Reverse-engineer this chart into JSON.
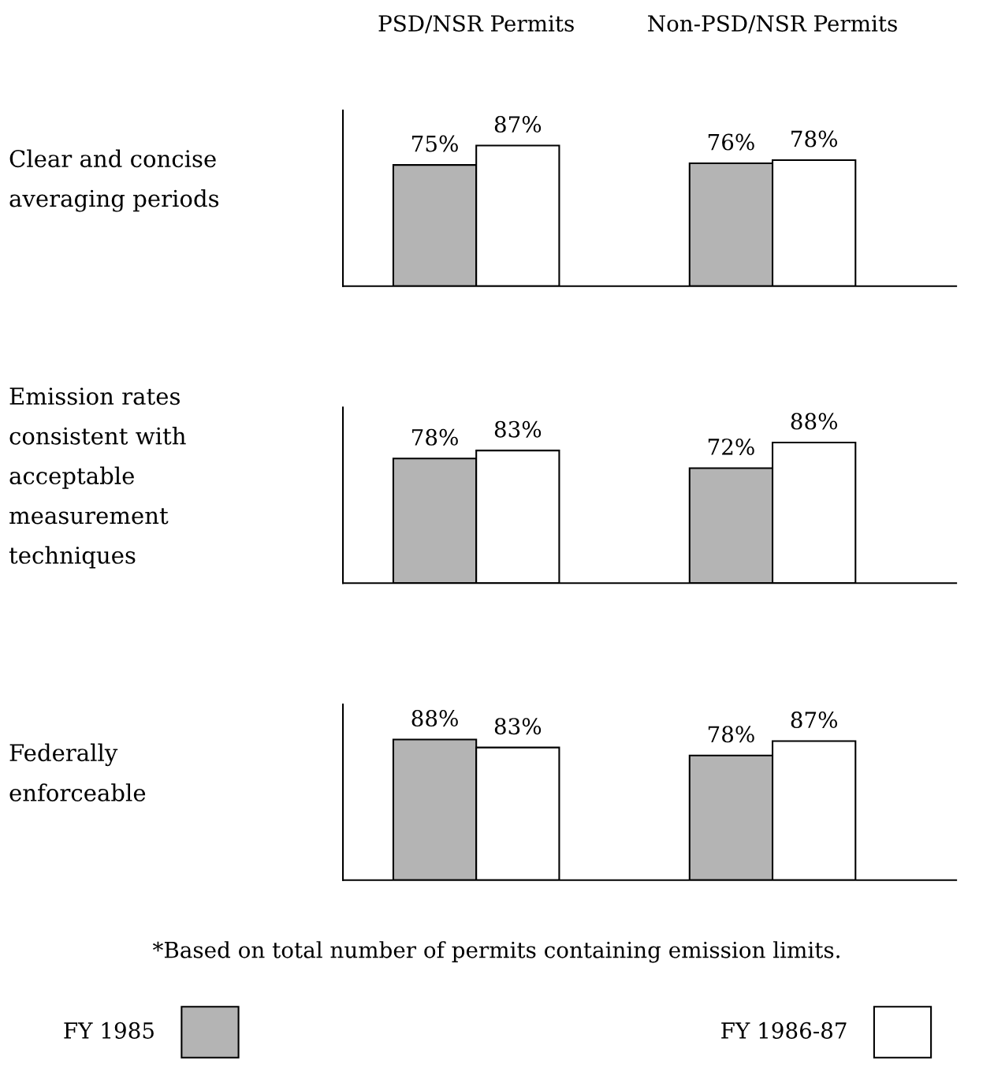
{
  "chart_data": [
    {
      "type": "bar",
      "categories": [
        "PSD/NSR Permits",
        "Non-PSD/NSR Permits"
      ],
      "ylabel": "Clear and concise\naveraging periods",
      "tick_labels": "x",
      "legend": "bottom",
      "series": [
        {
          "name": "FY 1985",
          "color": "#b4b4b4",
          "values": [
            75,
            76
          ],
          "value_labels": [
            "75%",
            "76%"
          ]
        },
        {
          "name": "FY 1986-87",
          "color": "#ffffff",
          "values": [
            87,
            78
          ],
          "value_labels": [
            "87%",
            "78%"
          ]
        }
      ]
    },
    {
      "type": "bar",
      "categories": [
        null,
        null
      ],
      "ylabel": "Emission rates\nconsistent with\nacceptable\nmeasurement\ntechniques",
      "tick_labels": false,
      "series": [
        {
          "color": "#b4b4b4",
          "values": [
            78,
            72
          ],
          "value_labels": [
            "78%",
            "72%"
          ]
        },
        {
          "color": "#ffffff",
          "values": [
            83,
            88
          ],
          "value_labels": [
            "83%",
            "88%"
          ]
        }
      ]
    },
    {
      "type": "bar",
      "categories": [
        null,
        null
      ],
      "ylabel": "Federally\nenforceable",
      "tick_labels": false,
      "annotations": [
        "*Based on total number of permits containing emission limits."
      ],
      "series": [
        {
          "color": "#b4b4b4",
          "values": [
            88,
            78
          ],
          "value_labels": [
            "88%",
            "78%"
          ]
        },
        {
          "color": "#ffffff",
          "values": [
            83,
            87
          ],
          "value_labels": [
            "83%",
            "87%"
          ]
        }
      ]
    }
  ]
}
